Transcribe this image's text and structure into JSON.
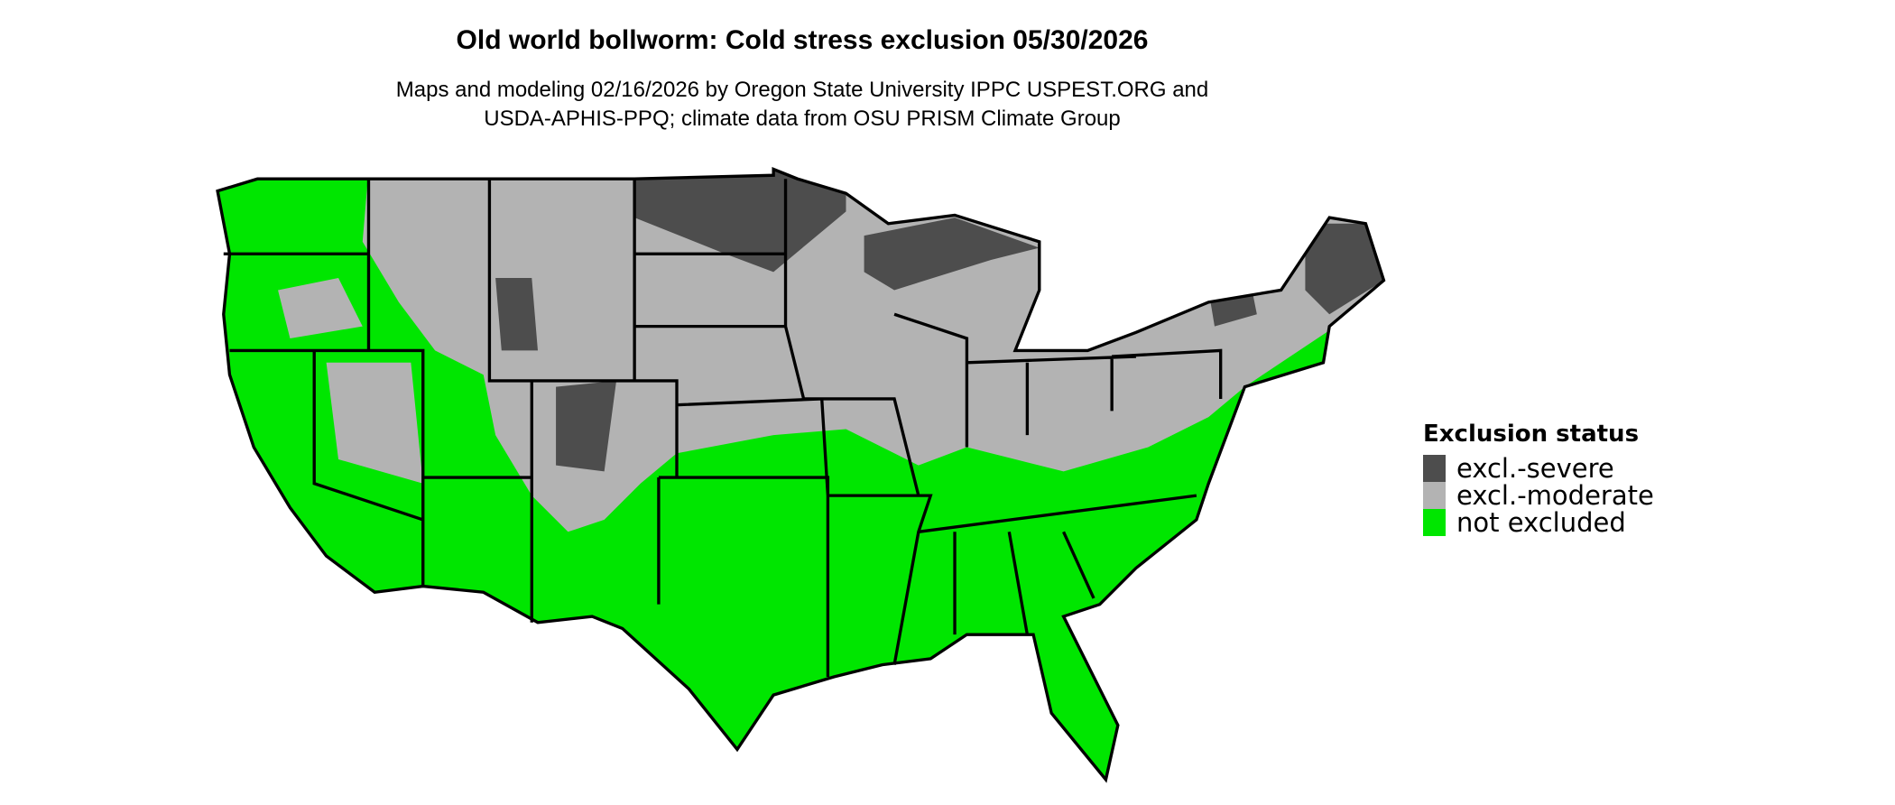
{
  "title": "Old world bollworm: Cold stress exclusion 05/30/2026",
  "subtitle_line1": "Maps and modeling 02/16/2026 by Oregon State University IPPC USPEST.ORG and",
  "subtitle_line2": "USDA-APHIS-PPQ; climate data from OSU PRISM Climate Group",
  "legend": {
    "title": "Exclusion status",
    "items": [
      {
        "label": "excl.-severe",
        "color": "#4d4d4d"
      },
      {
        "label": "excl.-moderate",
        "color": "#b3b3b3"
      },
      {
        "label": "not excluded",
        "color": "#00e600"
      }
    ]
  },
  "map": {
    "region": "Contiguous United States",
    "border_color": "#000000"
  }
}
